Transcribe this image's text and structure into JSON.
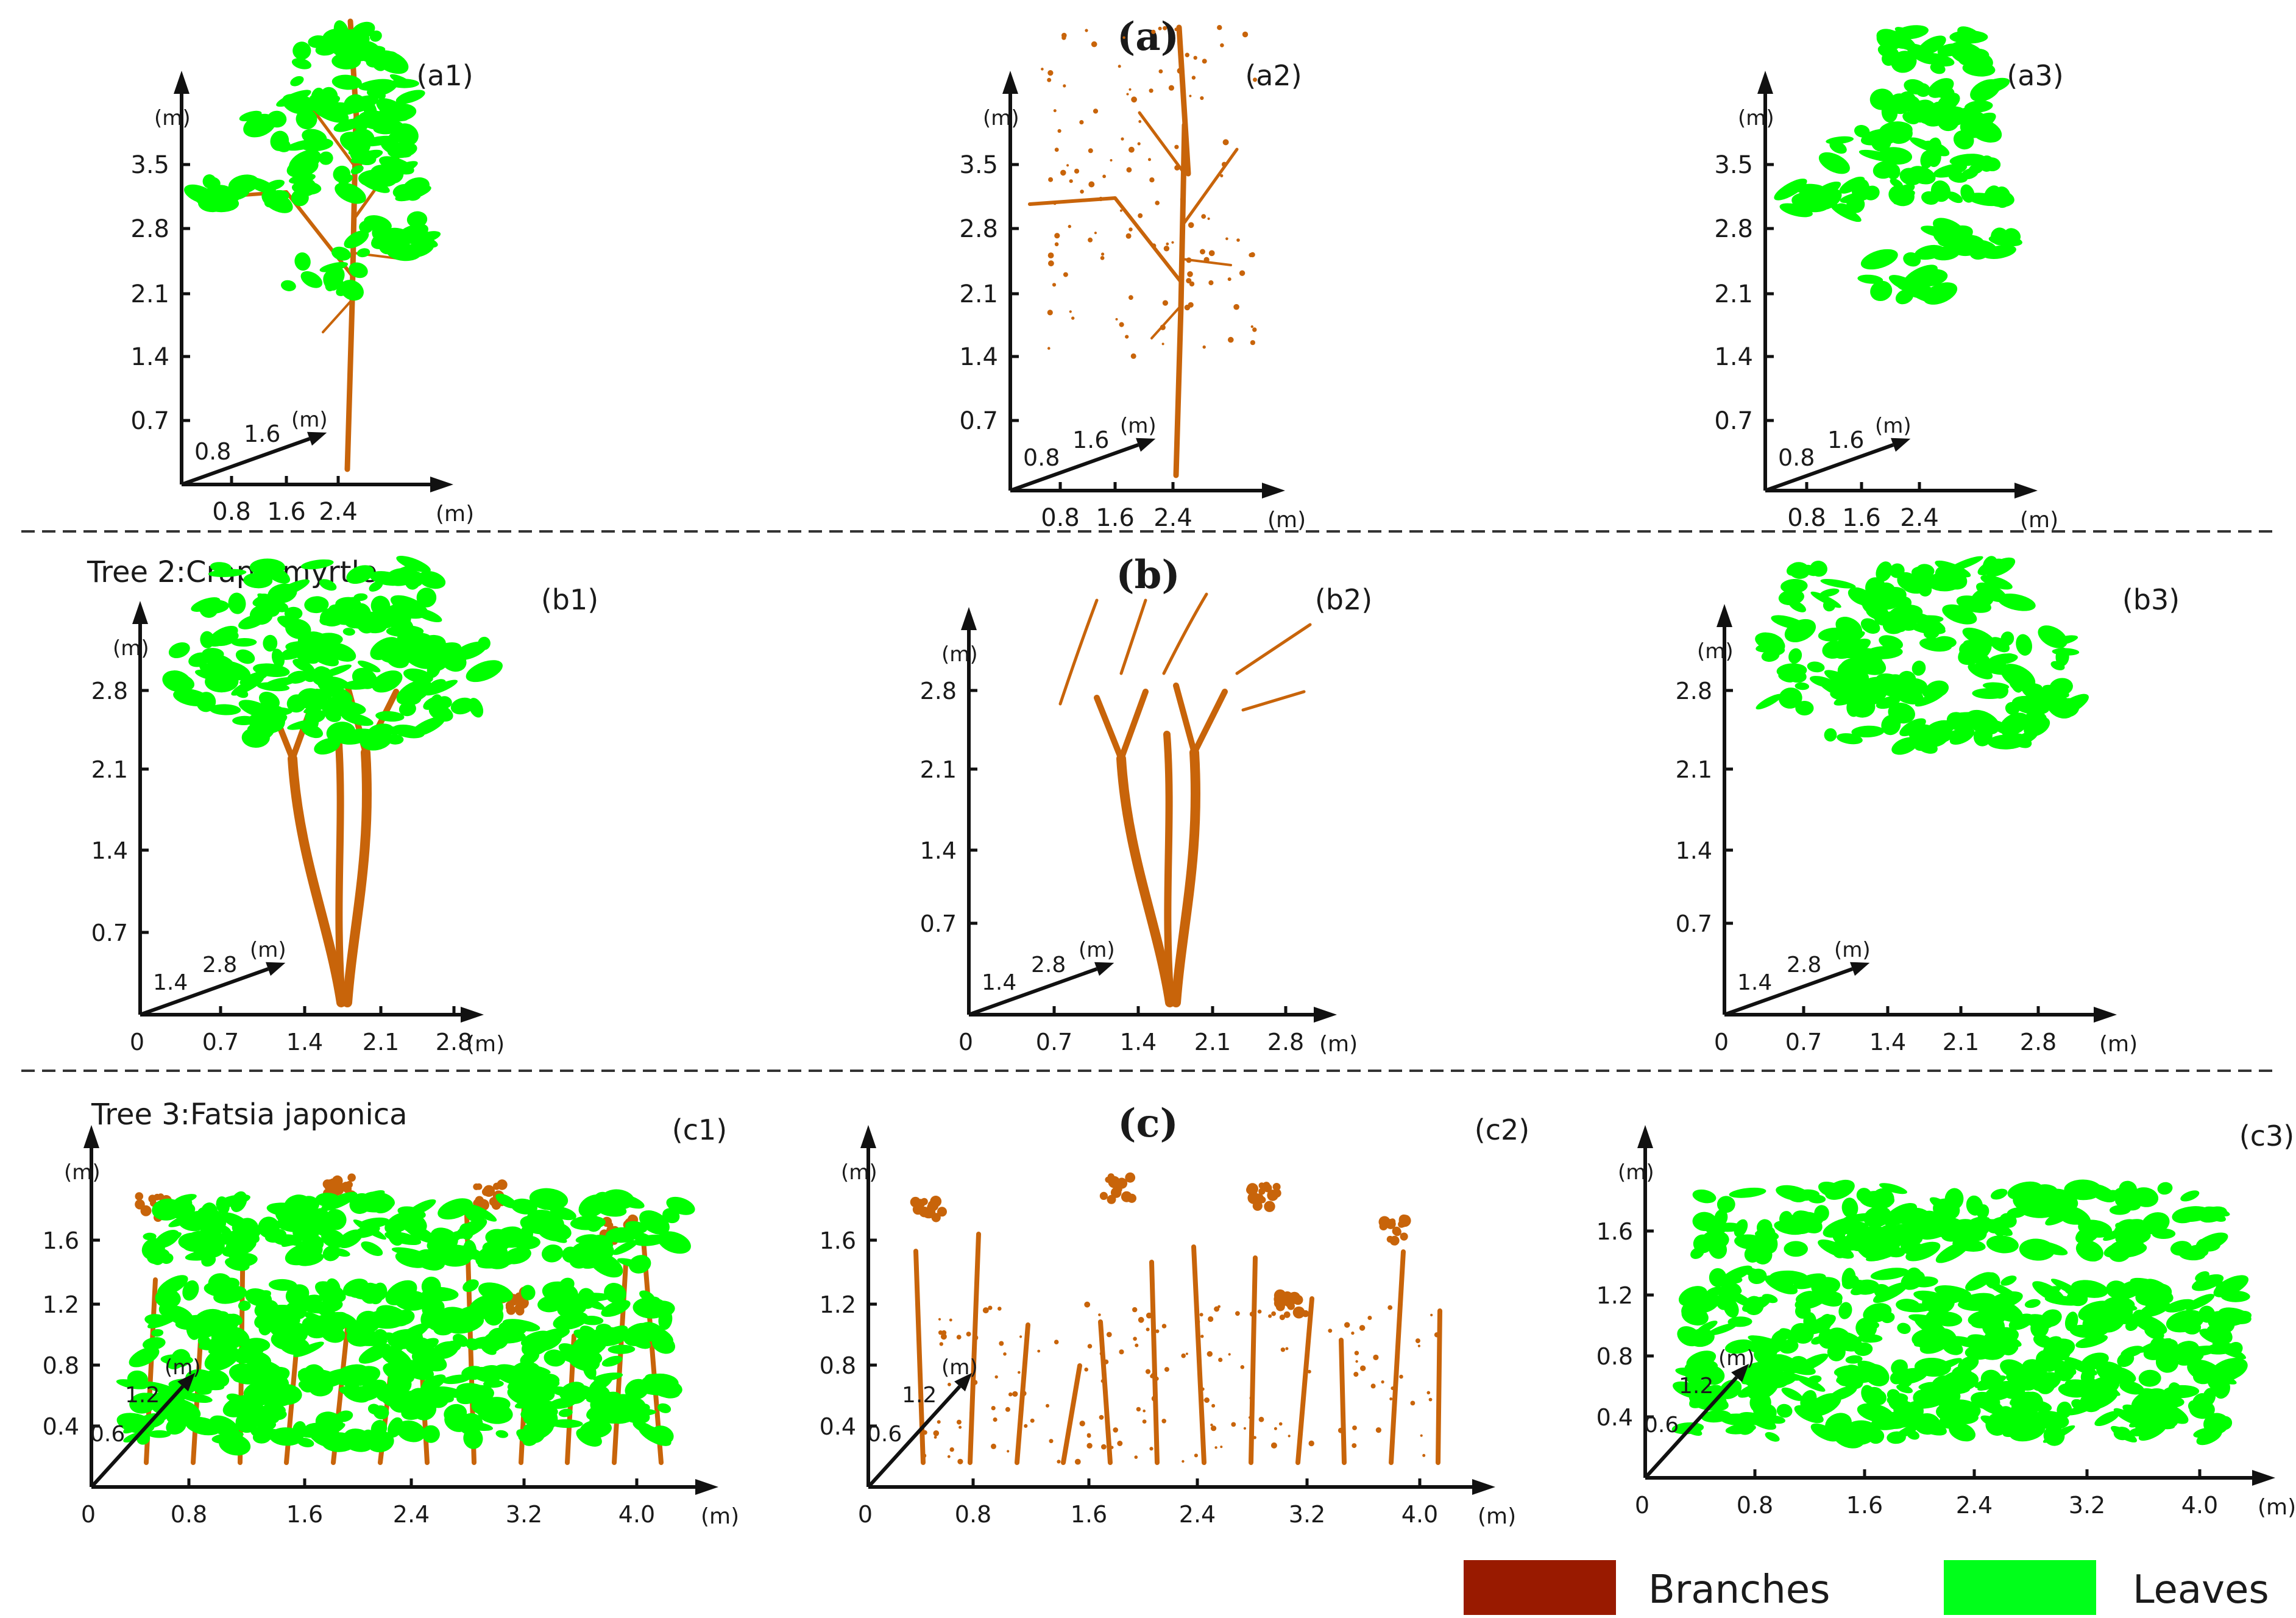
{
  "colors": {
    "branches": "#C8640A",
    "leaves": "#00FF00",
    "legend_branches": "#991A00",
    "legend_leaves": "#00FF1A"
  },
  "section_labels": {
    "a": "(a)",
    "b": "(b)",
    "c": "(c)"
  },
  "tree_titles": {
    "b": "Tree 2:Crape myrtle",
    "c": "Tree 3:Fatsia japonica"
  },
  "legend": {
    "branches": "Branches",
    "leaves": "Leaves"
  },
  "unit": "(m)",
  "panels": [
    {
      "id": "a1",
      "label": "(a1)",
      "y_ticks": [
        "0.7",
        "1.4",
        "2.1",
        "2.8",
        "3.5"
      ],
      "x_ticks": [
        "0.8",
        "1.6",
        "2.4"
      ],
      "depth_ticks": [
        "0.8",
        "1.6"
      ],
      "zero": "",
      "content": "both"
    },
    {
      "id": "a2",
      "label": "(a2)",
      "y_ticks": [
        "0.7",
        "1.4",
        "2.1",
        "2.8",
        "3.5"
      ],
      "x_ticks": [
        "0.8",
        "1.6",
        "2.4"
      ],
      "depth_ticks": [
        "0.8",
        "1.6"
      ],
      "zero": "",
      "content": "branches"
    },
    {
      "id": "a3",
      "label": "(a3)",
      "y_ticks": [
        "0.7",
        "1.4",
        "2.1",
        "2.8",
        "3.5"
      ],
      "x_ticks": [
        "0.8",
        "1.6",
        "2.4"
      ],
      "depth_ticks": [
        "0.8",
        "1.6"
      ],
      "zero": "",
      "content": "leaves"
    },
    {
      "id": "b1",
      "label": "(b1)",
      "y_ticks": [
        "0.7",
        "1.4",
        "2.1",
        "2.8"
      ],
      "x_ticks": [
        "0.7",
        "1.4",
        "2.1",
        "2.8"
      ],
      "depth_ticks": [
        "1.4",
        "2.8"
      ],
      "zero": "0",
      "content": "both"
    },
    {
      "id": "b2",
      "label": "(b2)",
      "y_ticks": [
        "0.7",
        "1.4",
        "2.1",
        "2.8"
      ],
      "x_ticks": [
        "0.7",
        "1.4",
        "2.1",
        "2.8"
      ],
      "depth_ticks": [
        "1.4",
        "2.8"
      ],
      "zero": "0",
      "content": "branches"
    },
    {
      "id": "b3",
      "label": "(b3)",
      "y_ticks": [
        "0.7",
        "1.4",
        "2.1",
        "2.8"
      ],
      "x_ticks": [
        "0.7",
        "1.4",
        "2.1",
        "2.8"
      ],
      "depth_ticks": [
        "1.4",
        "2.8"
      ],
      "zero": "0",
      "content": "leaves"
    },
    {
      "id": "c1",
      "label": "(c1)",
      "y_ticks": [
        "0.4",
        "0.8",
        "1.2",
        "1.6"
      ],
      "x_ticks": [
        "0.8",
        "1.6",
        "2.4",
        "3.2",
        "4.0"
      ],
      "depth_ticks": [
        "0.6",
        "1.2"
      ],
      "zero": "0",
      "content": "both"
    },
    {
      "id": "c2",
      "label": "(c2)",
      "y_ticks": [
        "0.4",
        "0.8",
        "1.2",
        "1.6"
      ],
      "x_ticks": [
        "0.8",
        "1.6",
        "2.4",
        "3.2",
        "4.0"
      ],
      "depth_ticks": [
        "0.6",
        "1.2"
      ],
      "zero": "0",
      "content": "branches"
    },
    {
      "id": "c3",
      "label": "(c3)",
      "y_ticks": [
        "0.4",
        "0.8",
        "1.2",
        "1.6"
      ],
      "x_ticks": [
        "0.8",
        "1.6",
        "2.4",
        "3.2",
        "4.0"
      ],
      "depth_ticks": [
        "0.6",
        "1.2"
      ],
      "zero": "0",
      "content": "leaves"
    }
  ]
}
